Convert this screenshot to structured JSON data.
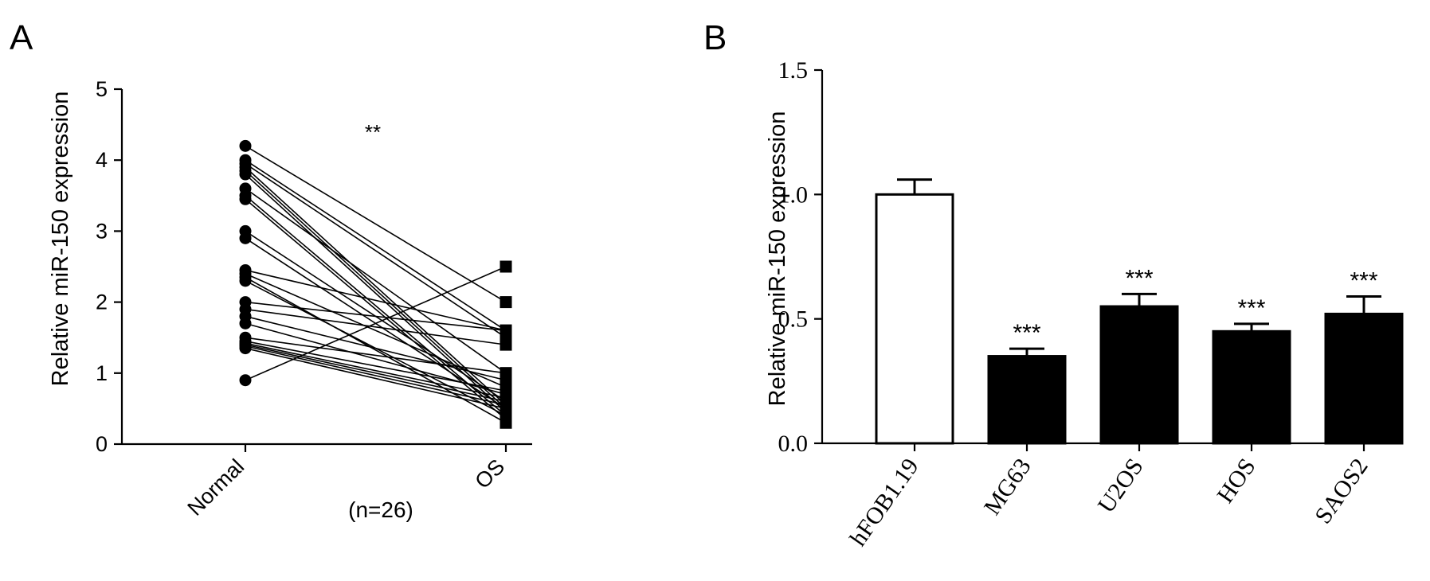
{
  "chart_data": [
    {
      "panel_label": "A",
      "type": "line",
      "subtype": "paired-dot-plot",
      "ylabel": "Relative miR-150 expression",
      "xlabel": "",
      "categories": [
        "Normal",
        "OS"
      ],
      "sample_note": "(n=26)",
      "significance": "**",
      "ylim": [
        0,
        5
      ],
      "yticks": [
        "0",
        "1",
        "2",
        "3",
        "4",
        "5"
      ],
      "grid": false,
      "pairs": [
        [
          4.2,
          2.0
        ],
        [
          4.0,
          1.6
        ],
        [
          3.95,
          1.5
        ],
        [
          3.9,
          0.55
        ],
        [
          3.85,
          0.5
        ],
        [
          3.8,
          0.45
        ],
        [
          3.6,
          1.0
        ],
        [
          3.5,
          0.4
        ],
        [
          3.45,
          0.35
        ],
        [
          3.0,
          0.6
        ],
        [
          2.9,
          0.5
        ],
        [
          2.45,
          1.6
        ],
        [
          2.4,
          0.8
        ],
        [
          2.35,
          0.3
        ],
        [
          2.3,
          0.4
        ],
        [
          2.0,
          1.6
        ],
        [
          1.9,
          1.4
        ],
        [
          1.8,
          0.9
        ],
        [
          1.7,
          0.7
        ],
        [
          1.5,
          1.0
        ],
        [
          1.45,
          0.75
        ],
        [
          1.42,
          0.65
        ],
        [
          1.4,
          0.6
        ],
        [
          1.38,
          0.55
        ],
        [
          1.35,
          0.5
        ],
        [
          0.9,
          2.5
        ]
      ]
    },
    {
      "panel_label": "B",
      "type": "bar",
      "ylabel": "Relative miR-150 expression",
      "xlabel": "",
      "categories": [
        "hFOB1.19",
        "MG63",
        "U2OS",
        "HOS",
        "SAOS2"
      ],
      "values": [
        1.0,
        0.35,
        0.55,
        0.45,
        0.52
      ],
      "errors": [
        0.06,
        0.03,
        0.05,
        0.03,
        0.07
      ],
      "significance": [
        "",
        "***",
        "***",
        "***",
        "***"
      ],
      "fills": [
        "#ffffff",
        "#000000",
        "#000000",
        "#000000",
        "#000000"
      ],
      "ylim": [
        0,
        1.5
      ],
      "yticks": [
        "0.0",
        "0.5",
        "1.0",
        "1.5"
      ],
      "grid": false
    }
  ]
}
